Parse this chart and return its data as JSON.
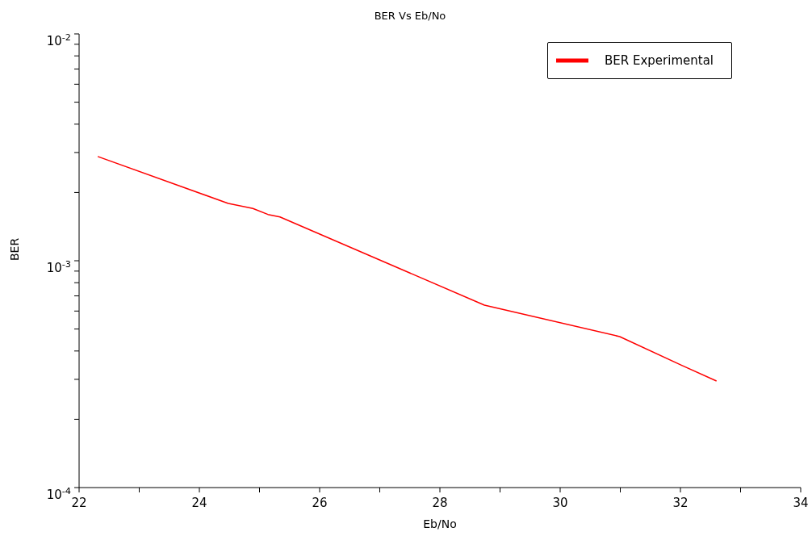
{
  "chart_data": {
    "type": "line",
    "title": "BER Vs Eb/No",
    "xlabel": "Eb/No",
    "ylabel": "BER",
    "x": [
      22.31,
      24.48,
      24.89,
      25.14,
      25.34,
      28.74,
      30.99,
      32.03,
      32.6
    ],
    "series": [
      {
        "name": "BER Experimental",
        "color": "#ff0000",
        "values": [
          0.00288,
          0.00179,
          0.0017,
          0.0016,
          0.00156,
          0.000637,
          0.000463,
          0.000345,
          0.000295
        ]
      }
    ],
    "log": "y",
    "xlim": [
      22,
      34
    ],
    "xticks": [
      22,
      {
        "value": 23,
        "label": null
      },
      24,
      {
        "value": 25,
        "label": null
      },
      26,
      {
        "value": 27,
        "label": null
      },
      28,
      {
        "value": 29,
        "label": null
      },
      30,
      {
        "value": 31,
        "label": null
      },
      32,
      {
        "value": 33,
        "label": null
      },
      34
    ],
    "ylim": [
      0.0001,
      0.01
    ],
    "yticks": [
      {
        "value": 0.0001,
        "label": "10$^{-4}$"
      },
      {
        "value": 0.0002,
        "label": null
      },
      {
        "value": 0.0003,
        "label": null
      },
      {
        "value": 0.0004,
        "label": null
      },
      {
        "value": 0.0005,
        "label": null
      },
      {
        "value": 0.0006,
        "label": null
      },
      {
        "value": 0.0007,
        "label": null
      },
      {
        "value": 0.0008,
        "label": null
      },
      {
        "value": 0.0009,
        "label": null
      },
      {
        "value": 0.001,
        "label": "10$^{-3}$"
      },
      {
        "value": 0.002,
        "label": null
      },
      {
        "value": 0.003,
        "label": null
      },
      {
        "value": 0.004,
        "label": null
      },
      {
        "value": 0.005,
        "label": null
      },
      {
        "value": 0.006,
        "label": null
      },
      {
        "value": 0.007,
        "label": null
      },
      {
        "value": 0.008,
        "label": null
      },
      {
        "value": 0.009,
        "label": null
      },
      {
        "value": 0.01,
        "label": "10$^{-2}$"
      }
    ],
    "grid": false,
    "legend": "top right",
    "marker": "none",
    "line_style": "solid"
  }
}
